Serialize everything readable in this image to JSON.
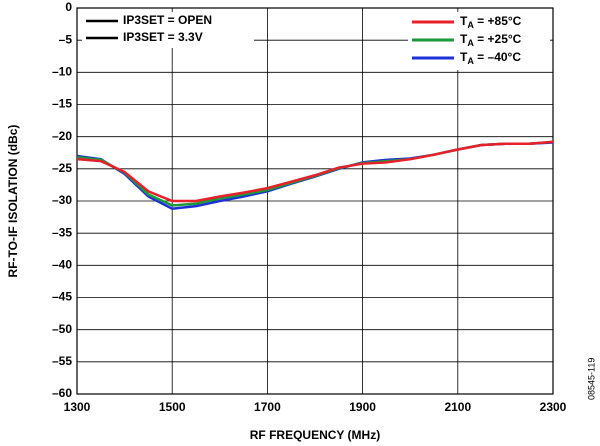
{
  "chart_data": {
    "type": "line",
    "xlabel": "RF FREQUENCY (MHz)",
    "ylabel": "RF-TO-IF ISOLATION (dBc)",
    "figure_code": "08545-119",
    "x": [
      1300,
      1350,
      1400,
      1450,
      1500,
      1550,
      1600,
      1650,
      1700,
      1750,
      1800,
      1850,
      1900,
      1950,
      2000,
      2050,
      2100,
      2150,
      2200,
      2250,
      2300
    ],
    "series": [
      {
        "name": "TA = +85°C",
        "color": "#e8202a",
        "values": [
          -23.5,
          -23.8,
          -25.5,
          -28.5,
          -30.0,
          -30.0,
          -29.3,
          -28.7,
          -28.0,
          -27.0,
          -26.0,
          -24.8,
          -24.2,
          -24.0,
          -23.5,
          -22.8,
          -22.0,
          -21.3,
          -21.1,
          -21.1,
          -20.8
        ]
      },
      {
        "name": "TA = +25°C",
        "color": "#1a9a3a",
        "values": [
          -23.2,
          -23.6,
          -25.6,
          -29.0,
          -30.7,
          -30.4,
          -29.6,
          -29.0,
          -28.3,
          -27.2,
          -26.1,
          -24.9,
          -24.1,
          -23.8,
          -23.5,
          -22.8,
          -22.0,
          -21.3,
          -21.1,
          -21.1,
          -20.8
        ]
      },
      {
        "name": "TA = –40°C",
        "color": "#1f2fd8",
        "values": [
          -23.0,
          -23.5,
          -25.8,
          -29.3,
          -31.2,
          -30.8,
          -30.0,
          -29.3,
          -28.5,
          -27.3,
          -26.2,
          -25.0,
          -24.0,
          -23.6,
          -23.4,
          -22.8,
          -22.0,
          -21.3,
          -21.1,
          -21.1,
          -20.9
        ]
      }
    ],
    "style_legend": [
      {
        "name": "IP3SET = OPEN",
        "color": "#000000"
      },
      {
        "name": "IP3SET = 3.3V",
        "color": "#000000"
      }
    ],
    "xlim": [
      1300,
      2300
    ],
    "xticks": [
      1300,
      1500,
      1700,
      1900,
      2100,
      2300
    ],
    "ylim": [
      -60,
      0
    ],
    "yticks": [
      0,
      {
        "value": -5,
        "label": "–5"
      },
      {
        "value": -10,
        "label": "–10"
      },
      {
        "value": -15,
        "label": "–15"
      },
      {
        "value": -20,
        "label": "–20"
      },
      {
        "value": -25,
        "label": "–25"
      },
      {
        "value": -30,
        "label": "–30"
      },
      {
        "value": -35,
        "label": "–35"
      },
      {
        "value": -40,
        "label": "–40"
      },
      {
        "value": -45,
        "label": "–45"
      },
      {
        "value": -50,
        "label": "–50"
      },
      {
        "value": -55,
        "label": "–55"
      },
      {
        "value": -60,
        "label": "–60"
      }
    ],
    "grid": true
  }
}
